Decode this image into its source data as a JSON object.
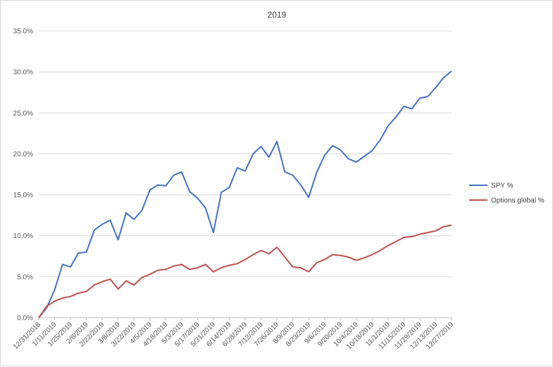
{
  "chart_data": {
    "type": "line",
    "title": "2019",
    "xlabel": "",
    "ylabel": "",
    "ylim": [
      0,
      0.35
    ],
    "y_ticks": [
      "0.0%",
      "5.0%",
      "10.0%",
      "15.0%",
      "20.0%",
      "25.0%",
      "30.0%",
      "35.0%"
    ],
    "y_tick_values": [
      0,
      0.05,
      0.1,
      0.15,
      0.2,
      0.25,
      0.3,
      0.35
    ],
    "grid": true,
    "legend_position": "right",
    "x": [
      "12/31/2018",
      "1/4/2019",
      "1/11/2019",
      "1/18/2019",
      "1/25/2019",
      "2/1/2019",
      "2/8/2019",
      "2/15/2019",
      "2/22/2019",
      "3/1/2019",
      "3/8/2019",
      "3/15/2019",
      "3/22/2019",
      "3/29/2019",
      "4/5/2019",
      "4/12/2019",
      "4/18/2019",
      "4/26/2019",
      "5/3/2019",
      "5/10/2019",
      "5/17/2019",
      "5/24/2019",
      "5/31/2019",
      "6/7/2019",
      "6/14/2019",
      "6/21/2019",
      "6/28/2019",
      "7/5/2019",
      "7/12/2019",
      "7/19/2019",
      "7/26/2019",
      "8/2/2019",
      "8/9/2019",
      "8/16/2019",
      "8/23/2019",
      "8/30/2019",
      "9/6/2019",
      "9/13/2019",
      "9/20/2019",
      "9/27/2019",
      "10/4/2019",
      "10/11/2019",
      "10/18/2019",
      "10/25/2019",
      "11/1/2019",
      "11/8/2019",
      "11/15/2019",
      "11/22/2019",
      "11/29/2019",
      "12/6/2019",
      "12/13/2019",
      "12/20/2019",
      "12/27/2019"
    ],
    "x_tick_labels": [
      "12/31/2018",
      "1/11/2019",
      "1/25/2019",
      "2/8/2019",
      "2/22/2019",
      "3/8/2019",
      "3/22/2019",
      "4/5/2019",
      "4/18/2019",
      "5/3/2019",
      "5/17/2019",
      "5/31/2019",
      "6/14/2019",
      "6/28/2019",
      "7/12/2019",
      "7/26/2019",
      "8/9/2019",
      "8/23/2019",
      "9/6/2019",
      "9/20/2019",
      "10/4/2019",
      "10/18/2019",
      "11/1/2019",
      "11/15/2019",
      "11/29/2019",
      "12/13/2019",
      "12/27/2019"
    ],
    "series": [
      {
        "name": "SPY %",
        "color": "#4472c4",
        "values": [
          0.0,
          0.012,
          0.034,
          0.065,
          0.062,
          0.079,
          0.08,
          0.107,
          0.114,
          0.119,
          0.095,
          0.128,
          0.12,
          0.131,
          0.156,
          0.162,
          0.161,
          0.174,
          0.178,
          0.154,
          0.146,
          0.134,
          0.104,
          0.153,
          0.159,
          0.183,
          0.179,
          0.2,
          0.209,
          0.196,
          0.215,
          0.178,
          0.174,
          0.162,
          0.147,
          0.177,
          0.198,
          0.21,
          0.205,
          0.194,
          0.19,
          0.197,
          0.204,
          0.217,
          0.234,
          0.245,
          0.258,
          0.255,
          0.268,
          0.27,
          0.281,
          0.293,
          0.301
        ]
      },
      {
        "name": "Options global %",
        "color": "#c0504d",
        "values": [
          0.0,
          0.014,
          0.02,
          0.024,
          0.026,
          0.03,
          0.032,
          0.04,
          0.044,
          0.047,
          0.035,
          0.045,
          0.04,
          0.049,
          0.053,
          0.058,
          0.059,
          0.063,
          0.065,
          0.059,
          0.061,
          0.065,
          0.056,
          0.061,
          0.064,
          0.066,
          0.071,
          0.077,
          0.082,
          0.078,
          0.086,
          0.074,
          0.062,
          0.061,
          0.056,
          0.067,
          0.071,
          0.077,
          0.076,
          0.074,
          0.07,
          0.073,
          0.077,
          0.082,
          0.088,
          0.093,
          0.098,
          0.099,
          0.102,
          0.104,
          0.106,
          0.111,
          0.113
        ]
      }
    ]
  }
}
